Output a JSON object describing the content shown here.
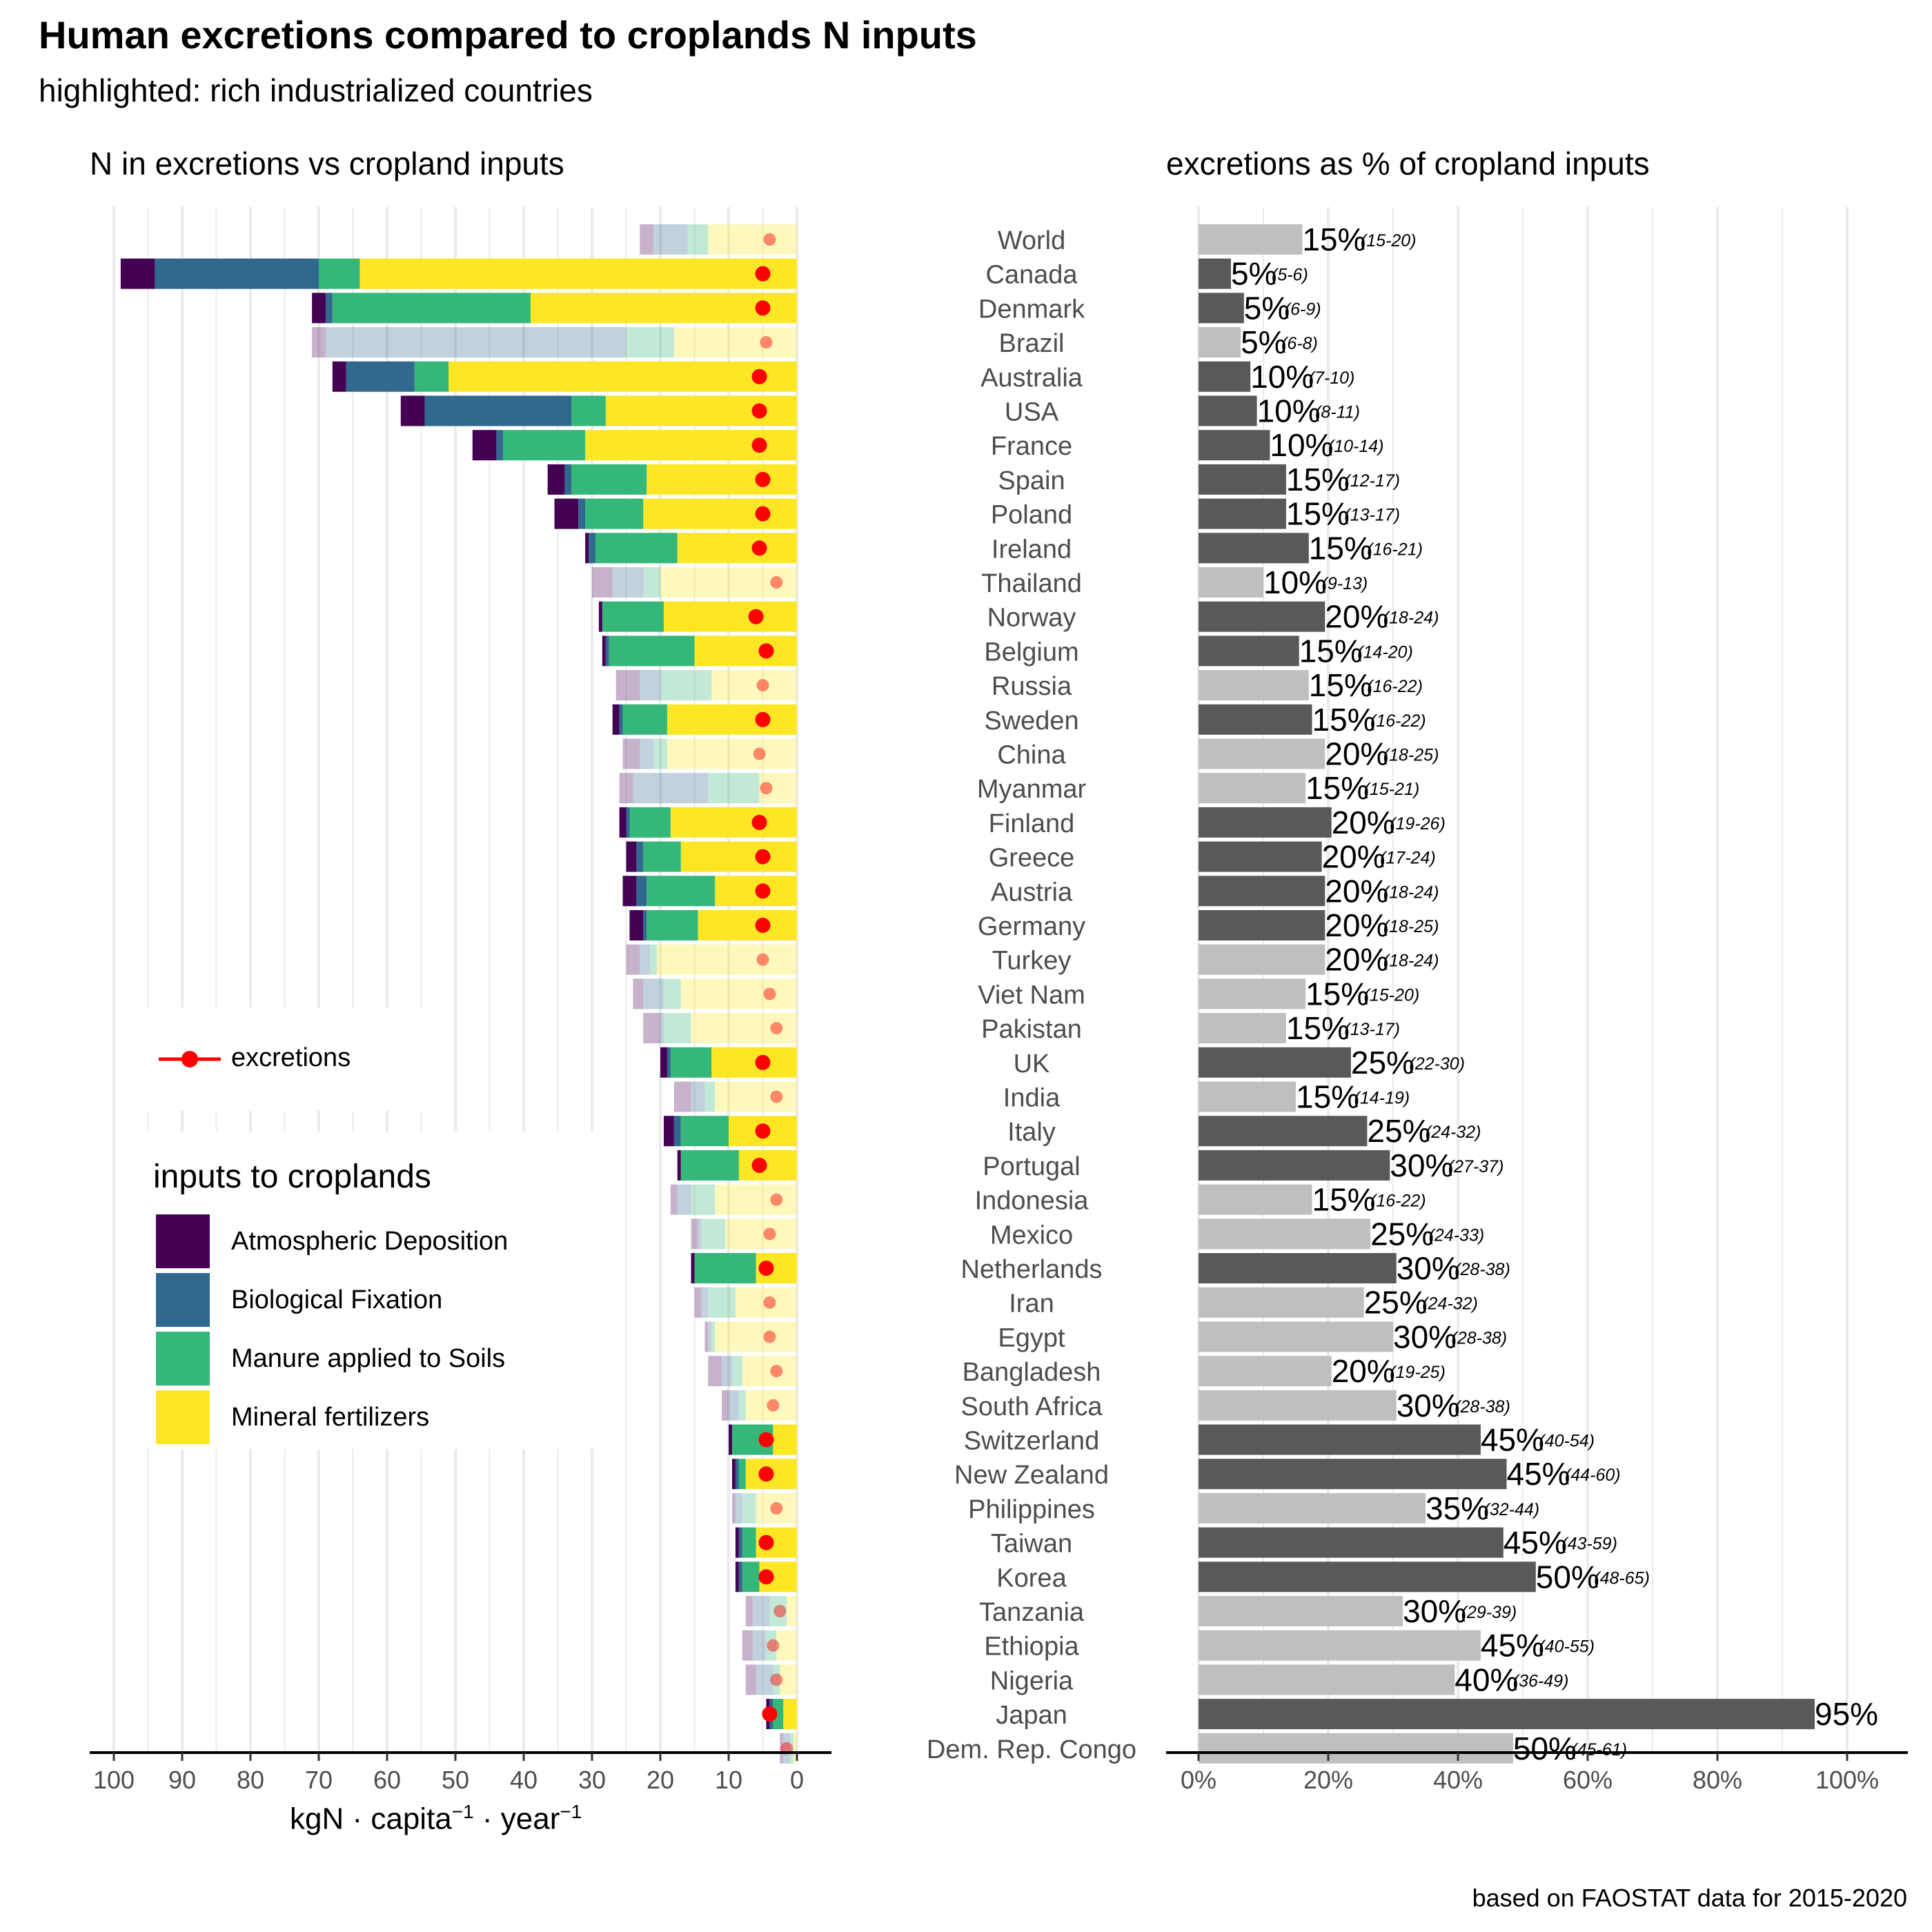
{
  "title": "Human excretions compared to croplands N inputs",
  "subtitle": "highlighted: rich industrialized countries",
  "left_panel_title": "N in excretions vs cropland inputs",
  "right_panel_title": "excretions as % of cropland inputs",
  "caption": "based on FAOSTAT data for 2015-2020",
  "x_label_left": {
    "base": "kgN · capita",
    "exp1": "−1",
    "mid": " · year",
    "exp2": "−1"
  },
  "legend": {
    "excretions_label": "excretions",
    "inputs_title": "inputs to croplands",
    "items": [
      {
        "label": "Atmospheric Deposition",
        "color": "#440154"
      },
      {
        "label": "Biological Fixation",
        "color": "#31688e"
      },
      {
        "label": "Manure applied to Soils",
        "color": "#35b779"
      },
      {
        "label": "Mineral fertilizers",
        "color": "#fde725"
      }
    ]
  },
  "colors": {
    "atm": "#440154",
    "bio": "#31688e",
    "man": "#35b779",
    "min": "#fde725",
    "excretion": "#ff0000",
    "rich_bar": "#595959",
    "other_bar": "#bfbfbf",
    "grid": "#ebebeb"
  },
  "chart_data": [
    {
      "type": "bar",
      "orientation": "horizontal stacked",
      "title": "N in excretions vs cropland inputs",
      "xlabel": "kgN · capita−1 · year−1",
      "xlim": [
        100,
        0
      ],
      "x_ticks": [
        "100",
        "90",
        "80",
        "70",
        "60",
        "50",
        "40",
        "30",
        "20",
        "10",
        "0"
      ],
      "series_names": [
        "Atmospheric Deposition",
        "Biological Fixation",
        "Manure applied to Soils",
        "Mineral fertilizers",
        "excretions"
      ],
      "rows": [
        {
          "country": "World",
          "rich": false,
          "atm": 2,
          "bio": 5,
          "man": 3,
          "min": 13,
          "exc": 4
        },
        {
          "country": "Canada",
          "rich": true,
          "atm": 5,
          "bio": 24,
          "man": 6,
          "min": 64,
          "exc": 5
        },
        {
          "country": "Denmark",
          "rich": true,
          "atm": 2,
          "bio": 1,
          "man": 29,
          "min": 39,
          "exc": 5
        },
        {
          "country": "Brazil",
          "rich": false,
          "atm": 2,
          "bio": 44,
          "man": 7,
          "min": 18,
          "exc": 4.5
        },
        {
          "country": "Australia",
          "rich": true,
          "atm": 2,
          "bio": 10,
          "man": 5,
          "min": 51,
          "exc": 5.5
        },
        {
          "country": "USA",
          "rich": true,
          "atm": 3.5,
          "bio": 21.5,
          "man": 5,
          "min": 28,
          "exc": 5.5
        },
        {
          "country": "France",
          "rich": true,
          "atm": 3.5,
          "bio": 1,
          "man": 12,
          "min": 31,
          "exc": 5.5
        },
        {
          "country": "Spain",
          "rich": true,
          "atm": 2.5,
          "bio": 1,
          "man": 11,
          "min": 22,
          "exc": 5
        },
        {
          "country": "Poland",
          "rich": true,
          "atm": 3.5,
          "bio": 1,
          "man": 8.5,
          "min": 22.5,
          "exc": 5
        },
        {
          "country": "Ireland",
          "rich": true,
          "atm": 0.5,
          "bio": 1,
          "man": 12,
          "min": 17.5,
          "exc": 5.5
        },
        {
          "country": "Thailand",
          "rich": false,
          "atm": 3,
          "bio": 4.5,
          "man": 2.5,
          "min": 20,
          "exc": 3
        },
        {
          "country": "Norway",
          "rich": true,
          "atm": 0.5,
          "bio": 0,
          "man": 9,
          "min": 19.5,
          "exc": 6
        },
        {
          "country": "Belgium",
          "rich": true,
          "atm": 0.5,
          "bio": 0.5,
          "man": 12.5,
          "min": 15,
          "exc": 4.5
        },
        {
          "country": "Russia",
          "rich": false,
          "atm": 3.5,
          "bio": 3,
          "man": 7.5,
          "min": 12.5,
          "exc": 5
        },
        {
          "country": "Sweden",
          "rich": true,
          "atm": 1,
          "bio": 0.5,
          "man": 6.5,
          "min": 19,
          "exc": 5
        },
        {
          "country": "China",
          "rich": false,
          "atm": 2.5,
          "bio": 2,
          "man": 2,
          "min": 19,
          "exc": 5.5
        },
        {
          "country": "Myanmar",
          "rich": false,
          "atm": 2,
          "bio": 11,
          "man": 7.5,
          "min": 5.5,
          "exc": 4.5
        },
        {
          "country": "Finland",
          "rich": true,
          "atm": 1,
          "bio": 0.5,
          "man": 6,
          "min": 18.5,
          "exc": 5.5
        },
        {
          "country": "Greece",
          "rich": true,
          "atm": 1.5,
          "bio": 1,
          "man": 5.5,
          "min": 17,
          "exc": 5
        },
        {
          "country": "Austria",
          "rich": true,
          "atm": 2,
          "bio": 1.5,
          "man": 10,
          "min": 12,
          "exc": 5
        },
        {
          "country": "Germany",
          "rich": true,
          "atm": 2,
          "bio": 0.5,
          "man": 7.5,
          "min": 14.5,
          "exc": 5
        },
        {
          "country": "Turkey",
          "rich": false,
          "atm": 2,
          "bio": 1.5,
          "man": 1,
          "min": 20.5,
          "exc": 5
        },
        {
          "country": "Viet Nam",
          "rich": false,
          "atm": 1.5,
          "bio": 3,
          "man": 2.5,
          "min": 17,
          "exc": 4
        },
        {
          "country": "Pakistan",
          "rich": false,
          "atm": 2.5,
          "bio": 0.5,
          "man": 4,
          "min": 15.5,
          "exc": 3
        },
        {
          "country": "UK",
          "rich": true,
          "atm": 1,
          "bio": 0.5,
          "man": 6,
          "min": 12.5,
          "exc": 5
        },
        {
          "country": "India",
          "rich": false,
          "atm": 2.5,
          "bio": 2,
          "man": 1.5,
          "min": 12,
          "exc": 3
        },
        {
          "country": "Italy",
          "rich": true,
          "atm": 1.5,
          "bio": 1,
          "man": 7,
          "min": 10,
          "exc": 5
        },
        {
          "country": "Portugal",
          "rich": true,
          "atm": 0.5,
          "bio": 0,
          "man": 8.5,
          "min": 8.5,
          "exc": 5.5
        },
        {
          "country": "Indonesia",
          "rich": false,
          "atm": 1,
          "bio": 2,
          "man": 3.5,
          "min": 12,
          "exc": 3
        },
        {
          "country": "Mexico",
          "rich": false,
          "atm": 1,
          "bio": 0.5,
          "man": 3.5,
          "min": 10.5,
          "exc": 4
        },
        {
          "country": "Netherlands",
          "rich": true,
          "atm": 0.5,
          "bio": 0,
          "man": 9,
          "min": 6,
          "exc": 4.5
        },
        {
          "country": "Iran",
          "rich": false,
          "atm": 1,
          "bio": 1,
          "man": 4,
          "min": 9,
          "exc": 4
        },
        {
          "country": "Egypt",
          "rich": false,
          "atm": 0.5,
          "bio": 0.5,
          "man": 0.5,
          "min": 12,
          "exc": 4
        },
        {
          "country": "Bangladesh",
          "rich": false,
          "atm": 2,
          "bio": 1.5,
          "man": 1.5,
          "min": 8,
          "exc": 3
        },
        {
          "country": "South Africa",
          "rich": false,
          "atm": 1,
          "bio": 1.5,
          "man": 1,
          "min": 7.5,
          "exc": 3.5
        },
        {
          "country": "Switzerland",
          "rich": true,
          "atm": 0.5,
          "bio": 0,
          "man": 6,
          "min": 3.5,
          "exc": 4.5
        },
        {
          "country": "New Zealand",
          "rich": true,
          "atm": 0.5,
          "bio": 0.5,
          "man": 1,
          "min": 7.5,
          "exc": 4.5
        },
        {
          "country": "Philippines",
          "rich": false,
          "atm": 0.5,
          "bio": 1,
          "man": 2,
          "min": 6,
          "exc": 3
        },
        {
          "country": "Taiwan",
          "rich": true,
          "atm": 0.5,
          "bio": 0.5,
          "man": 2,
          "min": 6,
          "exc": 4.5
        },
        {
          "country": "Korea",
          "rich": true,
          "atm": 0.5,
          "bio": 0.5,
          "man": 2.5,
          "min": 5.5,
          "exc": 4.5
        },
        {
          "country": "Tanzania",
          "rich": false,
          "atm": 1,
          "bio": 2.5,
          "man": 2.5,
          "min": 1.5,
          "exc": 2.5
        },
        {
          "country": "Ethiopia",
          "rich": false,
          "atm": 1.5,
          "bio": 2,
          "man": 1.5,
          "min": 3,
          "exc": 3.5
        },
        {
          "country": "Nigeria",
          "rich": false,
          "atm": 1.5,
          "bio": 2.5,
          "man": 1,
          "min": 2.5,
          "exc": 3
        },
        {
          "country": "Japan",
          "rich": true,
          "atm": 0.5,
          "bio": 0.5,
          "man": 1.5,
          "min": 2,
          "exc": 4
        },
        {
          "country": "Dem. Rep. Congo",
          "rich": false,
          "atm": 0.5,
          "bio": 1,
          "man": 0.5,
          "min": 0.5,
          "exc": 1.5
        }
      ]
    },
    {
      "type": "bar",
      "orientation": "horizontal",
      "title": "excretions as % of cropland inputs",
      "xlim": [
        0,
        100
      ],
      "x_ticks": [
        "0%",
        "20%",
        "40%",
        "60%",
        "80%",
        "100%"
      ],
      "rows": [
        {
          "country": "World",
          "value": 16,
          "label": "15%",
          "range": "(15-20)",
          "rich": false
        },
        {
          "country": "Canada",
          "value": 5,
          "label": "5%",
          "range": "(5-6)",
          "rich": true
        },
        {
          "country": "Denmark",
          "value": 7,
          "label": "5%",
          "range": "(6-9)",
          "rich": true
        },
        {
          "country": "Brazil",
          "value": 6.5,
          "label": "5%",
          "range": "(6-8)",
          "rich": false
        },
        {
          "country": "Australia",
          "value": 8,
          "label": "10%",
          "range": "(7-10)",
          "rich": true
        },
        {
          "country": "USA",
          "value": 9,
          "label": "10%",
          "range": "(8-11)",
          "rich": true
        },
        {
          "country": "France",
          "value": 11,
          "label": "10%",
          "range": "(10-14)",
          "rich": true
        },
        {
          "country": "Spain",
          "value": 13.5,
          "label": "15%",
          "range": "(12-17)",
          "rich": true
        },
        {
          "country": "Poland",
          "value": 13.5,
          "label": "15%",
          "range": "(13-17)",
          "rich": true
        },
        {
          "country": "Ireland",
          "value": 17,
          "label": "15%",
          "range": "(16-21)",
          "rich": true
        },
        {
          "country": "Thailand",
          "value": 10,
          "label": "10%",
          "range": "(9-13)",
          "rich": false
        },
        {
          "country": "Norway",
          "value": 19.5,
          "label": "20%",
          "range": "(18-24)",
          "rich": true
        },
        {
          "country": "Belgium",
          "value": 15.5,
          "label": "15%",
          "range": "(14-20)",
          "rich": true
        },
        {
          "country": "Russia",
          "value": 17,
          "label": "15%",
          "range": "(16-22)",
          "rich": false
        },
        {
          "country": "Sweden",
          "value": 17.5,
          "label": "15%",
          "range": "(16-22)",
          "rich": true
        },
        {
          "country": "China",
          "value": 19.5,
          "label": "20%",
          "range": "(18-25)",
          "rich": false
        },
        {
          "country": "Myanmar",
          "value": 16.5,
          "label": "15%",
          "range": "(15-21)",
          "rich": false
        },
        {
          "country": "Finland",
          "value": 20.5,
          "label": "20%",
          "range": "(19-26)",
          "rich": true
        },
        {
          "country": "Greece",
          "value": 19,
          "label": "20%",
          "range": "(17-24)",
          "rich": true
        },
        {
          "country": "Austria",
          "value": 19.5,
          "label": "20%",
          "range": "(18-24)",
          "rich": true
        },
        {
          "country": "Germany",
          "value": 19.5,
          "label": "20%",
          "range": "(18-25)",
          "rich": true
        },
        {
          "country": "Turkey",
          "value": 19.5,
          "label": "20%",
          "range": "(18-24)",
          "rich": false
        },
        {
          "country": "Viet Nam",
          "value": 16.5,
          "label": "15%",
          "range": "(15-20)",
          "rich": false
        },
        {
          "country": "Pakistan",
          "value": 13.5,
          "label": "15%",
          "range": "(13-17)",
          "rich": false
        },
        {
          "country": "UK",
          "value": 23.5,
          "label": "25%",
          "range": "(22-30)",
          "rich": true
        },
        {
          "country": "India",
          "value": 15,
          "label": "15%",
          "range": "(14-19)",
          "rich": false
        },
        {
          "country": "Italy",
          "value": 26,
          "label": "25%",
          "range": "(24-32)",
          "rich": true
        },
        {
          "country": "Portugal",
          "value": 29.5,
          "label": "30%",
          "range": "(27-37)",
          "rich": true
        },
        {
          "country": "Indonesia",
          "value": 17.5,
          "label": "15%",
          "range": "(16-22)",
          "rich": false
        },
        {
          "country": "Mexico",
          "value": 26.5,
          "label": "25%",
          "range": "(24-33)",
          "rich": false
        },
        {
          "country": "Netherlands",
          "value": 30.5,
          "label": "30%",
          "range": "(28-38)",
          "rich": true
        },
        {
          "country": "Iran",
          "value": 25.5,
          "label": "25%",
          "range": "(24-32)",
          "rich": false
        },
        {
          "country": "Egypt",
          "value": 30,
          "label": "30%",
          "range": "(28-38)",
          "rich": false
        },
        {
          "country": "Bangladesh",
          "value": 20.5,
          "label": "20%",
          "range": "(19-25)",
          "rich": false
        },
        {
          "country": "South Africa",
          "value": 30.5,
          "label": "30%",
          "range": "(28-38)",
          "rich": false
        },
        {
          "country": "Switzerland",
          "value": 43.5,
          "label": "45%",
          "range": "(40-54)",
          "rich": true
        },
        {
          "country": "New Zealand",
          "value": 47.5,
          "label": "45%",
          "range": "(44-60)",
          "rich": true
        },
        {
          "country": "Philippines",
          "value": 35,
          "label": "35%",
          "range": "(32-44)",
          "rich": false
        },
        {
          "country": "Taiwan",
          "value": 47,
          "label": "45%",
          "range": "(43-59)",
          "rich": true
        },
        {
          "country": "Korea",
          "value": 52,
          "label": "50%",
          "range": "(48-65)",
          "rich": true
        },
        {
          "country": "Tanzania",
          "value": 31.5,
          "label": "30%",
          "range": "(29-39)",
          "rich": false
        },
        {
          "country": "Ethiopia",
          "value": 43.5,
          "label": "45%",
          "range": "(40-55)",
          "rich": false
        },
        {
          "country": "Nigeria",
          "value": 39.5,
          "label": "40%",
          "range": "(36-49)",
          "rich": false
        },
        {
          "country": "Japan",
          "value": 95,
          "label": "95%",
          "range": "",
          "rich": true
        },
        {
          "country": "Dem. Rep. Congo",
          "value": 48.5,
          "label": "50%",
          "range": "(45-61)",
          "rich": false
        }
      ]
    }
  ]
}
